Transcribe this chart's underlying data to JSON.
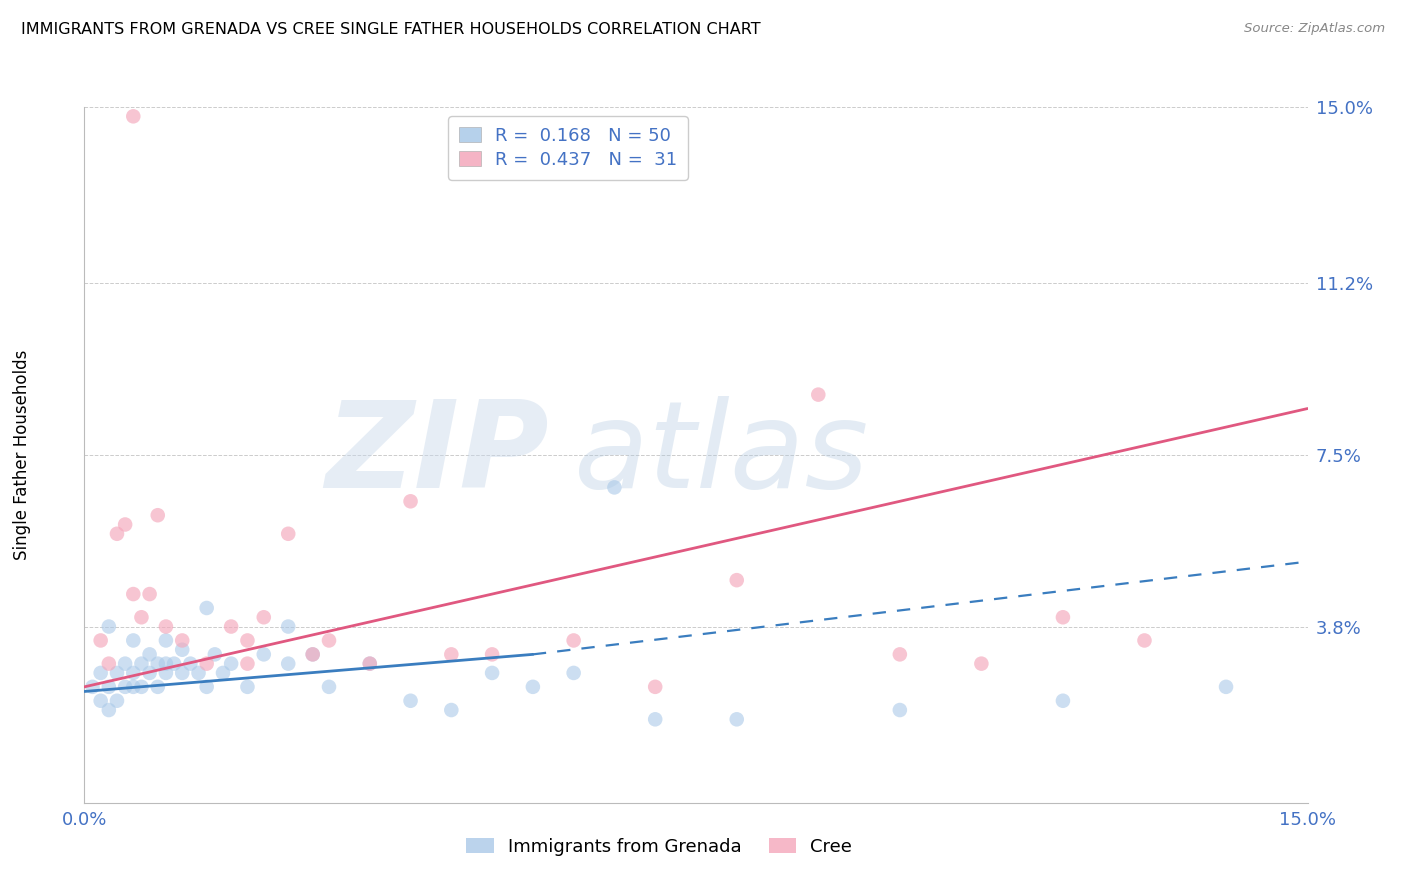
{
  "title": "IMMIGRANTS FROM GRENADA VS CREE SINGLE FATHER HOUSEHOLDS CORRELATION CHART",
  "source": "Source: ZipAtlas.com",
  "ylabel": "Single Father Households",
  "x_min": 0.0,
  "x_max": 0.15,
  "y_min": 0.0,
  "y_max": 0.15,
  "y_tick_vals": [
    0.038,
    0.075,
    0.112,
    0.15
  ],
  "y_tick_labels": [
    "3.8%",
    "7.5%",
    "11.2%",
    "15.0%"
  ],
  "x_tick_vals": [
    0.0,
    0.15
  ],
  "x_tick_labels": [
    "0.0%",
    "15.0%"
  ],
  "legend_label1": "Immigrants from Grenada",
  "legend_label2": "Cree",
  "R1": "0.168",
  "N1": "50",
  "R2": "0.437",
  "N2": "31",
  "color_blue": "#aac9e8",
  "color_pink": "#f4a7bb",
  "color_blue_line": "#3a7dbf",
  "color_pink_line": "#e05880",
  "blue_scatter_x": [
    0.001,
    0.002,
    0.002,
    0.003,
    0.003,
    0.004,
    0.004,
    0.005,
    0.005,
    0.006,
    0.006,
    0.007,
    0.007,
    0.008,
    0.008,
    0.009,
    0.009,
    0.01,
    0.01,
    0.011,
    0.012,
    0.012,
    0.013,
    0.014,
    0.015,
    0.016,
    0.017,
    0.018,
    0.02,
    0.022,
    0.025,
    0.028,
    0.03,
    0.035,
    0.04,
    0.045,
    0.05,
    0.055,
    0.06,
    0.07,
    0.08,
    0.1,
    0.12,
    0.14,
    0.003,
    0.006,
    0.01,
    0.015,
    0.025,
    0.065
  ],
  "blue_scatter_y": [
    0.025,
    0.022,
    0.028,
    0.02,
    0.025,
    0.022,
    0.028,
    0.025,
    0.03,
    0.028,
    0.025,
    0.03,
    0.025,
    0.032,
    0.028,
    0.025,
    0.03,
    0.028,
    0.035,
    0.03,
    0.028,
    0.033,
    0.03,
    0.028,
    0.025,
    0.032,
    0.028,
    0.03,
    0.025,
    0.032,
    0.03,
    0.032,
    0.025,
    0.03,
    0.022,
    0.02,
    0.028,
    0.025,
    0.028,
    0.018,
    0.018,
    0.02,
    0.022,
    0.025,
    0.038,
    0.035,
    0.03,
    0.042,
    0.038,
    0.068
  ],
  "pink_scatter_x": [
    0.002,
    0.003,
    0.004,
    0.005,
    0.006,
    0.007,
    0.008,
    0.009,
    0.01,
    0.012,
    0.015,
    0.018,
    0.02,
    0.022,
    0.025,
    0.028,
    0.03,
    0.035,
    0.04,
    0.045,
    0.05,
    0.06,
    0.07,
    0.08,
    0.09,
    0.1,
    0.11,
    0.12,
    0.006,
    0.02,
    0.13
  ],
  "pink_scatter_y": [
    0.035,
    0.03,
    0.058,
    0.06,
    0.045,
    0.04,
    0.045,
    0.062,
    0.038,
    0.035,
    0.03,
    0.038,
    0.035,
    0.04,
    0.058,
    0.032,
    0.035,
    0.03,
    0.065,
    0.032,
    0.032,
    0.035,
    0.025,
    0.048,
    0.088,
    0.032,
    0.03,
    0.04,
    0.148,
    0.03,
    0.035
  ],
  "trend_blue_solid_x0": 0.0,
  "trend_blue_solid_y0": 0.024,
  "trend_blue_solid_x1": 0.055,
  "trend_blue_solid_y1": 0.032,
  "trend_blue_dash_x1": 0.15,
  "trend_blue_dash_y1": 0.052,
  "trend_pink_x0": 0.0,
  "trend_pink_y0": 0.025,
  "trend_pink_x1": 0.15,
  "trend_pink_y1": 0.085
}
